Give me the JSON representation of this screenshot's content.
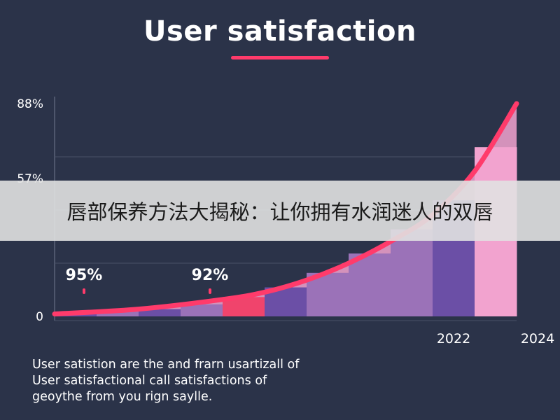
{
  "title": "User satisfaction",
  "banner_text": "唇部保养方法大揭秘：让你拥有水润迷人的双唇",
  "caption_lines": [
    "User satistion are the and frarn usartizall of",
    "User satisfactional call satisfactions of",
    "geoythe from you rign saylle."
  ],
  "colors": {
    "background": "#2b3349",
    "accent": "#ff3b6b",
    "bar_light_purple": "#9b72b8",
    "bar_dark_purple": "#6b4fa6",
    "bar_red": "#f0446c",
    "area_pink": "#f2a3cf"
  },
  "chart_data": {
    "type": "line",
    "y_tick_labels": [
      "0",
      "57%",
      "88%"
    ],
    "x_tick_labels": [
      {
        "at": 9,
        "label": "2022"
      },
      {
        "at": 11,
        "label": "2024"
      }
    ],
    "annotations": [
      {
        "at": 0.7,
        "label": "95%"
      },
      {
        "at": 3.7,
        "label": "92%"
      }
    ],
    "bars": [
      {
        "index": 0,
        "value": 1,
        "color": "bar_dark_purple"
      },
      {
        "index": 1,
        "value": 2,
        "color": "bar_light_purple"
      },
      {
        "index": 2,
        "value": 3,
        "color": "bar_dark_purple"
      },
      {
        "index": 3,
        "value": 5,
        "color": "bar_light_purple"
      },
      {
        "index": 4,
        "value": 8,
        "color": "bar_red"
      },
      {
        "index": 5,
        "value": 12,
        "color": "bar_dark_purple"
      },
      {
        "index": 6,
        "value": 18,
        "color": "bar_light_purple"
      },
      {
        "index": 7,
        "value": 26,
        "color": "bar_light_purple"
      },
      {
        "index": 8,
        "value": 36,
        "color": "bar_light_purple"
      },
      {
        "index": 9,
        "value": 48,
        "color": "bar_dark_purple"
      },
      {
        "index": 10,
        "value": 70,
        "color": "area_pink"
      }
    ],
    "line": {
      "x": [
        0,
        2,
        4,
        5,
        6,
        7,
        8,
        9,
        10,
        11
      ],
      "y": [
        1,
        3,
        7,
        10,
        15,
        22,
        31,
        42,
        60,
        88
      ]
    },
    "ylim": [
      0,
      88
    ],
    "xlim": [
      0,
      11
    ]
  }
}
